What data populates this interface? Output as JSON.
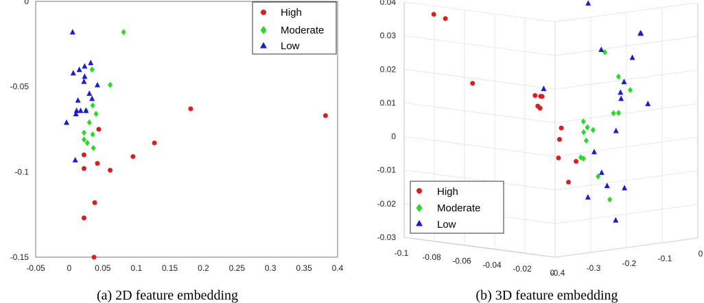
{
  "chart_data": [
    {
      "type": "scatter",
      "dims": 2,
      "caption": "(a) 2D feature embedding",
      "xlim": [
        -0.05,
        0.4
      ],
      "ylim": [
        -0.15,
        0
      ],
      "xticks": [
        "-0.05",
        "0",
        "0.05",
        "0.1",
        "0.15",
        "0.2",
        "0.25",
        "0.3",
        "0.35",
        "0.4"
      ],
      "yticks": [
        "0",
        "-0.05",
        "-0.1",
        "-0.15"
      ],
      "legend_position": "top-right",
      "series": [
        {
          "name": "High",
          "color": "#e31a1c",
          "marker": "circle",
          "points": [
            [
              0.382,
              -0.067
            ],
            [
              0.181,
              -0.063
            ],
            [
              0.127,
              -0.083
            ],
            [
              0.095,
              -0.091
            ],
            [
              0.061,
              -0.099
            ],
            [
              0.044,
              -0.075
            ],
            [
              0.042,
              -0.095
            ],
            [
              0.022,
              -0.09
            ],
            [
              0.022,
              -0.098
            ],
            [
              0.038,
              -0.118
            ],
            [
              0.022,
              -0.127
            ],
            [
              0.037,
              -0.15
            ]
          ]
        },
        {
          "name": "Moderate",
          "color": "#22dd22",
          "marker": "diamond",
          "points": [
            [
              0.081,
              -0.018
            ],
            [
              0.061,
              -0.049
            ],
            [
              0.034,
              -0.04
            ],
            [
              0.035,
              -0.061
            ],
            [
              0.04,
              -0.066
            ],
            [
              0.025,
              -0.064
            ],
            [
              0.03,
              -0.071
            ],
            [
              0.022,
              -0.077
            ],
            [
              0.035,
              -0.078
            ],
            [
              0.022,
              -0.081
            ],
            [
              0.027,
              -0.083
            ],
            [
              0.036,
              -0.086
            ]
          ]
        },
        {
          "name": "Low",
          "color": "#1a1adf",
          "marker": "triangle",
          "points": [
            [
              0.005,
              -0.018
            ],
            [
              0.032,
              -0.036
            ],
            [
              0.023,
              -0.038
            ],
            [
              0.006,
              -0.042
            ],
            [
              0.015,
              -0.04
            ],
            [
              0.023,
              -0.044
            ],
            [
              0.022,
              -0.047
            ],
            [
              0.042,
              -0.049
            ],
            [
              0.03,
              -0.054
            ],
            [
              0.034,
              -0.057
            ],
            [
              0.013,
              -0.058
            ],
            [
              0.025,
              -0.064
            ],
            [
              0.011,
              -0.064
            ],
            [
              0.017,
              -0.064
            ],
            [
              0.01,
              -0.066
            ],
            [
              -0.004,
              -0.071
            ],
            [
              0.009,
              -0.093
            ]
          ]
        }
      ]
    },
    {
      "type": "scatter",
      "dims": 3,
      "caption": "(b) 3D feature embedding",
      "xlim": [
        -0.1,
        0
      ],
      "ylim": [
        -0.4,
        0
      ],
      "zlim": [
        -0.03,
        0.04
      ],
      "xticks": [
        "-0.1",
        "-0.08",
        "-0.06",
        "-0.04",
        "-0.02",
        "0"
      ],
      "yticks": [
        "-0.4",
        "-0.3",
        "-0.2",
        "-0.1",
        "0"
      ],
      "zticks": [
        "0.04",
        "0.03",
        "0.02",
        "0.01",
        "0",
        "-0.01",
        "-0.02",
        "-0.03"
      ],
      "legend_position": "bottom-left",
      "series": [
        {
          "name": "High",
          "color": "#e31a1c",
          "marker": "circle",
          "points": [
            [
              -0.083,
              -0.389,
              0.0372
            ],
            [
              -0.076,
              -0.386,
              0.0363
            ],
            [
              -0.058,
              -0.386,
              0.0181
            ],
            [
              -0.031,
              -0.325,
              0.0152
            ],
            [
              -0.028,
              -0.318,
              0.015
            ],
            [
              -0.029,
              -0.318,
              0.015
            ],
            [
              -0.028,
              -0.33,
              0.0123
            ],
            [
              -0.026,
              -0.332,
              0.0118
            ],
            [
              -0.02,
              -0.298,
              0.0058
            ],
            [
              -0.02,
              -0.303,
              0.0025
            ],
            [
              -0.02,
              -0.306,
              -0.003
            ],
            [
              -0.014,
              -0.282,
              -0.004
            ],
            [
              -0.015,
              -0.299,
              -0.01
            ]
          ]
        },
        {
          "name": "Moderate",
          "color": "#22dd22",
          "marker": "diamond",
          "points": [
            [
              -0.015,
              -0.197,
              0.0272
            ],
            [
              -0.01,
              -0.18,
              0.02
            ],
            [
              -0.006,
              -0.164,
              0.016
            ],
            [
              -0.01,
              -0.194,
              0.0093
            ],
            [
              -0.009,
              -0.184,
              0.0093
            ],
            [
              -0.012,
              -0.27,
              0.0078
            ],
            [
              -0.011,
              -0.263,
              0.006
            ],
            [
              -0.013,
              -0.265,
              0.0045
            ],
            [
              -0.011,
              -0.247,
              0.005
            ],
            [
              -0.012,
              -0.262,
              0.002
            ],
            [
              -0.01,
              -0.278,
              -0.003
            ],
            [
              -0.014,
              -0.269,
              -0.003
            ],
            [
              -0.011,
              -0.233,
              -0.009
            ],
            [
              -0.008,
              -0.213,
              -0.016
            ]
          ]
        },
        {
          "name": "Low",
          "color": "#1a1adf",
          "marker": "triangle",
          "points": [
            [
              -0.027,
              -0.193,
              0.041
            ],
            [
              -0.01,
              -0.117,
              0.032
            ],
            [
              -0.01,
              -0.119,
              0.032
            ],
            [
              -0.016,
              -0.203,
              0.028
            ],
            [
              -0.011,
              -0.137,
              0.025
            ],
            [
              -0.012,
              -0.156,
              0.018
            ],
            [
              -0.03,
              -0.305,
              0.017
            ],
            [
              -0.012,
              -0.166,
              0.015
            ],
            [
              -0.008,
              -0.106,
              0.011
            ],
            [
              -0.013,
              -0.16,
              0.013
            ],
            [
              -0.01,
              -0.187,
              0.004
            ],
            [
              -0.015,
              -0.227,
              -0.002
            ],
            [
              -0.011,
              -0.223,
              -0.008
            ],
            [
              -0.01,
              -0.212,
              -0.012
            ],
            [
              -0.007,
              -0.176,
              -0.013
            ],
            [
              -0.013,
              -0.253,
              -0.015
            ],
            [
              -0.005,
              -0.209,
              -0.022
            ]
          ]
        }
      ]
    }
  ]
}
